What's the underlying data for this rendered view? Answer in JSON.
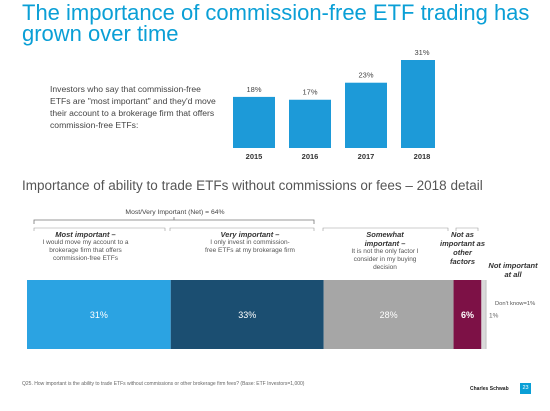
{
  "title": "The importance of commission-free ETF trading has grown over time",
  "intro_text": "Investors who say that commission-free ETFs are \"most important\" and they'd move their account to a brokerage firm that offers commission-free ETFs:",
  "subtitle": "Importance of ability to trade ETFs without commissions or fees – 2018 detail",
  "net_label": "Most/Very Important (Net) = 64%",
  "chart_data": [
    {
      "type": "bar",
      "categories": [
        "2015",
        "2016",
        "2017",
        "2018"
      ],
      "values": [
        18,
        17,
        23,
        31
      ],
      "value_labels": [
        "18%",
        "17%",
        "23%",
        "31%"
      ],
      "ylim": [
        0,
        31
      ],
      "color": "#1d9ad8"
    },
    {
      "type": "bar",
      "orientation": "horizontal-stacked",
      "categories": [
        "Most important",
        "Very important",
        "Somewhat important",
        "Not as important as other factors",
        "Not important at all",
        "Don't know"
      ],
      "values": [
        31,
        33,
        28,
        6,
        1,
        1
      ],
      "value_labels": [
        "31%",
        "33%",
        "28%",
        "6%",
        "1%",
        "Don't know=1%"
      ],
      "colors": [
        "#2ba3e2",
        "#1b4e71",
        "#a6a6a6",
        "#7d1146",
        "#d9d9d9",
        "#c7c7c7"
      ]
    }
  ],
  "segment_labels": [
    {
      "heading": "Most important –",
      "text": "I would move my account to a brokerage firm that offers commission-free ETFs"
    },
    {
      "heading": "Very important –",
      "text": "I only invest in commission-free ETFs at my brokerage firm"
    },
    {
      "heading": "Somewhat important –",
      "text": "It is not the only factor I consider in my buying decision"
    },
    {
      "heading": "Not as important as other factors",
      "text": ""
    },
    {
      "heading": "Not important at all",
      "text": ""
    }
  ],
  "footnote": "Q25. How important is the ability to trade ETFs without commissions or other brokerage firm fees? (Base: ETF Investors=1,000)",
  "brand": "Charles Schwab",
  "page_number": "23"
}
